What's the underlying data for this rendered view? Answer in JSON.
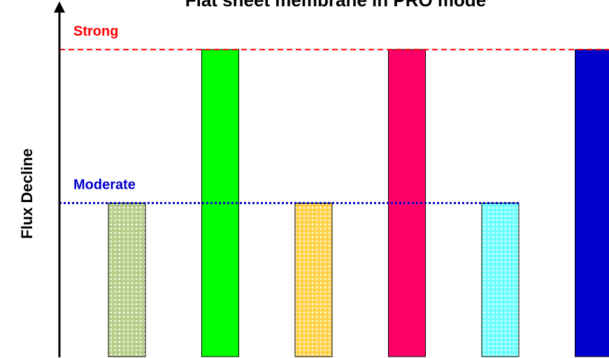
{
  "chart_data": {
    "type": "bar",
    "title": "Flat sheet membrane in PRO mode",
    "y_label": "Flux Decline",
    "categories": [
      null,
      null,
      null,
      null,
      null,
      null
    ],
    "values": [
      1,
      2,
      1,
      2,
      1,
      2
    ],
    "colors": [
      "#9bbb59",
      "#00ff00",
      "#ffc000",
      "#ff0066",
      "#33ffff",
      "#0000cc"
    ],
    "patterned": [
      true,
      false,
      true,
      false,
      true,
      false
    ],
    "ylim": [
      0,
      2.3
    ],
    "reference_lines": [
      {
        "label": "Strong",
        "value": 2,
        "color": "#ff0000",
        "style": "dashed"
      },
      {
        "label": "Moderate",
        "value": 1,
        "color": "#0000cc",
        "style": "dotted"
      }
    ]
  }
}
